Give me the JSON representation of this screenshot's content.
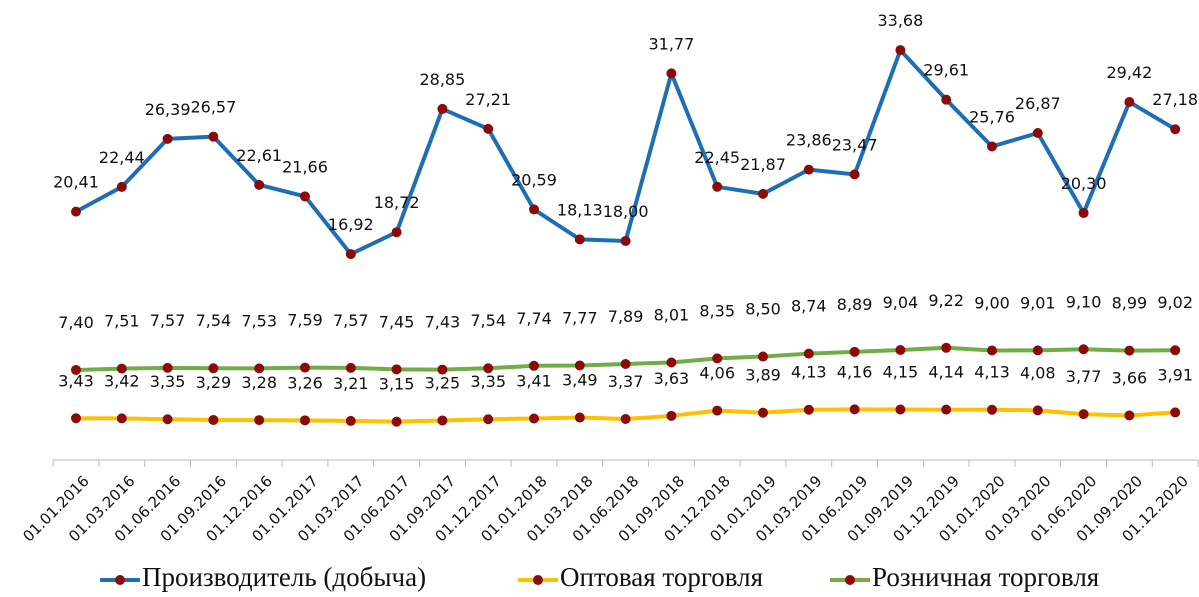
{
  "chart_data": {
    "type": "line",
    "categories": [
      "01.01.2016",
      "01.03.2016",
      "01.06.2016",
      "01.09.2016",
      "01.12.2016",
      "01.01.2017",
      "01.03.2017",
      "01.06.2017",
      "01.09.2017",
      "01.12.2017",
      "01.01.2018",
      "01.03.2018",
      "01.06.2018",
      "01.09.2018",
      "01.12.2018",
      "01.01.2019",
      "01.03.2019",
      "01.06.2019",
      "01.09.2019",
      "01.12.2019",
      "01.01.2020",
      "01.03.2020",
      "01.06.2020",
      "01.09.2020",
      "01.12.2020"
    ],
    "series": [
      {
        "name": "Производитель (добыча)",
        "color": "#1f6eb4",
        "values": [
          20.41,
          22.44,
          26.39,
          26.57,
          22.61,
          21.66,
          16.92,
          18.72,
          28.85,
          27.21,
          20.59,
          18.13,
          18.0,
          31.77,
          22.45,
          21.87,
          23.86,
          23.47,
          33.68,
          29.61,
          25.76,
          26.87,
          20.3,
          29.42,
          27.18
        ],
        "value_labels": [
          "20,41",
          "22,44",
          "26,39",
          "26,57",
          "22,61",
          "21,66",
          "16,92",
          "18,72",
          "28,85",
          "27,21",
          "20,59",
          "18,13",
          "18,00",
          "31,77",
          "22,45",
          "21,87",
          "23,86",
          "23,47",
          "33,68",
          "29,61",
          "25,76",
          "26,87",
          "20,30",
          "29,42",
          "27,18"
        ]
      },
      {
        "name": "Оптовая торговля",
        "color": "#ffc000",
        "values": [
          3.43,
          3.42,
          3.35,
          3.29,
          3.28,
          3.26,
          3.21,
          3.15,
          3.25,
          3.35,
          3.41,
          3.49,
          3.37,
          3.63,
          4.06,
          3.89,
          4.13,
          4.16,
          4.15,
          4.14,
          4.13,
          4.08,
          3.77,
          3.66,
          3.91
        ],
        "value_labels": [
          "3,43",
          "3,42",
          "3,35",
          "3,29",
          "3,28",
          "3,26",
          "3,21",
          "3,15",
          "3,25",
          "3,35",
          "3,41",
          "3,49",
          "3,37",
          "3,63",
          "4,06",
          "3,89",
          "4,13",
          "4,16",
          "4,15",
          "4,14",
          "4,13",
          "4,08",
          "3,77",
          "3,66",
          "3,91"
        ]
      },
      {
        "name": "Розничная торговля",
        "color": "#70ad47",
        "values": [
          7.4,
          7.51,
          7.57,
          7.54,
          7.53,
          7.59,
          7.57,
          7.45,
          7.43,
          7.54,
          7.74,
          7.77,
          7.89,
          8.01,
          8.35,
          8.5,
          8.74,
          8.89,
          9.04,
          9.22,
          9.0,
          9.01,
          9.1,
          8.99,
          9.02
        ],
        "value_labels": [
          "7,40",
          "7,51",
          "7,57",
          "7,54",
          "7,53",
          "7,59",
          "7,57",
          "7,45",
          "7,43",
          "7,54",
          "7,74",
          "7,77",
          "7,89",
          "8,01",
          "8,35",
          "8,50",
          "8,74",
          "8,89",
          "9,04",
          "9,22",
          "9,00",
          "9,01",
          "9,10",
          "8,99",
          "9,02"
        ]
      }
    ],
    "ylim": [
      0,
      37.8
    ],
    "marker_color": "#8b0a0a"
  }
}
